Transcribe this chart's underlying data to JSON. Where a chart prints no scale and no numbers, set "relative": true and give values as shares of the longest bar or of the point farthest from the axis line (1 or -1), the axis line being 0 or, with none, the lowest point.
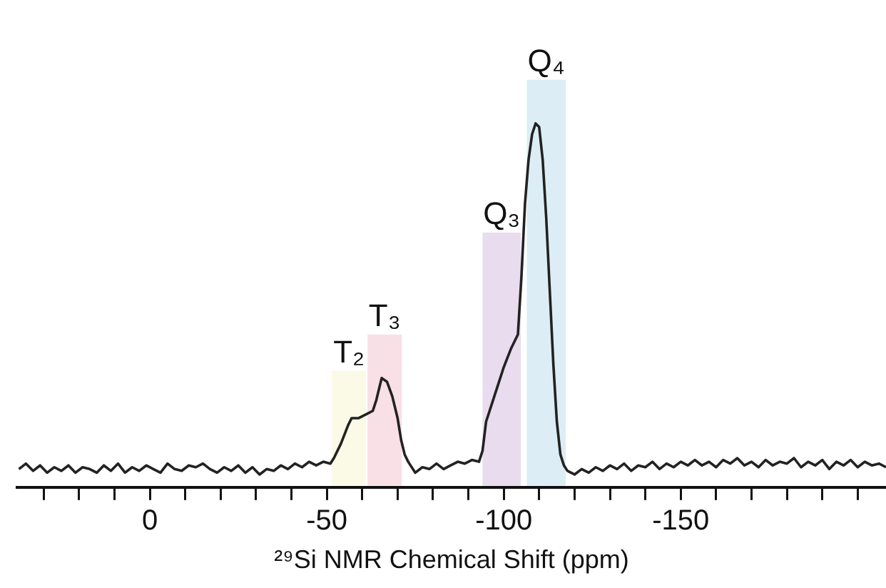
{
  "chart_data": {
    "type": "line",
    "relative": true,
    "xlabel": "²⁹Si NMR Chemical Shift (ppm)",
    "legend": false,
    "grid": false,
    "marker": "none",
    "tick_labels": "x",
    "xlim": [
      37.5,
      -208
    ],
    "xticks": [
      {
        "value": 30,
        "label": null
      },
      {
        "value": 20,
        "label": null
      },
      {
        "value": 10,
        "label": null
      },
      0,
      {
        "value": -10,
        "label": null
      },
      {
        "value": -20,
        "label": null
      },
      {
        "value": -30,
        "label": null
      },
      {
        "value": -40,
        "label": null
      },
      -50,
      {
        "value": -60,
        "label": null
      },
      {
        "value": -70,
        "label": null
      },
      {
        "value": -80,
        "label": null
      },
      {
        "value": -90,
        "label": null
      },
      -100,
      {
        "value": -110,
        "label": null
      },
      {
        "value": -120,
        "label": null
      },
      {
        "value": -130,
        "label": null
      },
      {
        "value": -140,
        "label": null
      },
      -150,
      {
        "value": -160,
        "label": null
      },
      {
        "value": -170,
        "label": null
      },
      {
        "value": -180,
        "label": null
      },
      {
        "value": -190,
        "label": null
      },
      {
        "value": -200,
        "label": null
      }
    ],
    "bands": [
      {
        "axis": "x",
        "from": -51.2,
        "to": -61.3,
        "label": "T₂",
        "color": "#fafae6"
      },
      {
        "axis": "x",
        "from": -61.3,
        "to": -71.4,
        "label": "T₃",
        "color": "#f8e0e6"
      },
      {
        "axis": "x",
        "from": -93.8,
        "to": -105.0,
        "label": "Q₃",
        "color": "#e9dcef"
      },
      {
        "axis": "x",
        "from": -106.3,
        "to": -117.7,
        "label": "Q₄",
        "color": "#dcedf5"
      }
    ],
    "series": [
      {
        "color": "#222222",
        "x": [
          37,
          35,
          33,
          31,
          29,
          27,
          25,
          23,
          21,
          19,
          17,
          15,
          13,
          11,
          9,
          7,
          5,
          3,
          1,
          -1,
          -3,
          -5,
          -7,
          -9,
          -11,
          -13,
          -15,
          -17,
          -19,
          -21,
          -23,
          -25,
          -27,
          -29,
          -31,
          -33,
          -35,
          -37,
          -39,
          -41,
          -43,
          -45,
          -47,
          -49,
          -51,
          -52,
          -54,
          -56,
          -57,
          -59,
          -61,
          -63,
          -64,
          -65.5,
          -67,
          -68.5,
          -70,
          -71,
          -72,
          -73,
          -75,
          -77,
          -79,
          -81,
          -83,
          -85,
          -87,
          -89,
          -91,
          -93,
          -94,
          -95,
          -98,
          -100,
          -102,
          -104,
          -105,
          -106,
          -107,
          -108,
          -109,
          -110,
          -111,
          -112,
          -113,
          -114,
          -115,
          -116,
          -117,
          -118,
          -120,
          -122,
          -124,
          -126,
          -128,
          -130,
          -132,
          -134,
          -136,
          -138,
          -140,
          -142,
          -144,
          -146,
          -148,
          -150,
          -152,
          -154,
          -156,
          -158,
          -160,
          -162,
          -164,
          -166,
          -168,
          -170,
          -172,
          -174,
          -176,
          -178,
          -180,
          -182,
          -184,
          -186,
          -188,
          -190,
          -192,
          -194,
          -196,
          -198,
          -200,
          -202,
          -204,
          -206,
          -208
        ],
        "values": [
          0.05,
          0.065,
          0.045,
          0.06,
          0.04,
          0.055,
          0.045,
          0.06,
          0.04,
          0.055,
          0.05,
          0.04,
          0.06,
          0.045,
          0.065,
          0.04,
          0.055,
          0.045,
          0.06,
          0.05,
          0.04,
          0.065,
          0.05,
          0.045,
          0.06,
          0.055,
          0.065,
          0.05,
          0.04,
          0.055,
          0.045,
          0.06,
          0.04,
          0.055,
          0.035,
          0.05,
          0.045,
          0.06,
          0.05,
          0.065,
          0.055,
          0.07,
          0.06,
          0.07,
          0.065,
          0.08,
          0.12,
          0.17,
          0.19,
          0.19,
          0.2,
          0.21,
          0.24,
          0.3,
          0.29,
          0.25,
          0.19,
          0.13,
          0.09,
          0.07,
          0.04,
          0.055,
          0.05,
          0.065,
          0.05,
          0.06,
          0.07,
          0.065,
          0.075,
          0.07,
          0.1,
          0.18,
          0.27,
          0.33,
          0.38,
          0.42,
          0.58,
          0.78,
          0.9,
          0.97,
          1.0,
          0.99,
          0.9,
          0.74,
          0.54,
          0.34,
          0.18,
          0.09,
          0.06,
          0.045,
          0.035,
          0.05,
          0.04,
          0.055,
          0.045,
          0.06,
          0.05,
          0.065,
          0.045,
          0.06,
          0.055,
          0.07,
          0.05,
          0.065,
          0.055,
          0.07,
          0.06,
          0.075,
          0.06,
          0.07,
          0.055,
          0.075,
          0.065,
          0.08,
          0.06,
          0.07,
          0.055,
          0.075,
          0.06,
          0.07,
          0.065,
          0.08,
          0.055,
          0.07,
          0.06,
          0.075,
          0.05,
          0.07,
          0.06,
          0.075,
          0.055,
          0.07,
          0.06,
          0.065,
          0.055
        ]
      }
    ]
  }
}
